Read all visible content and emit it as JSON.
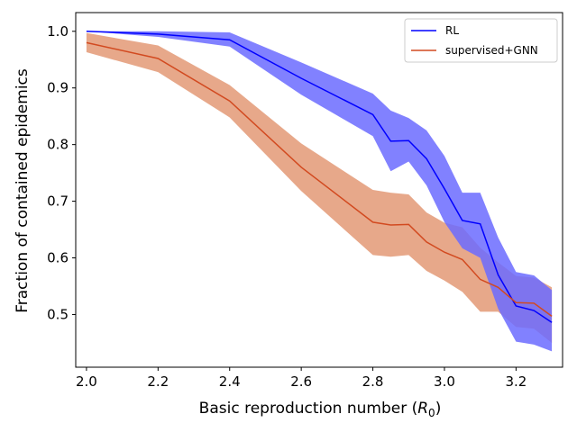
{
  "chart_data": {
    "type": "line",
    "title": "",
    "xlabel_main": "Basic reproduction number (",
    "xlabel_sym": "R",
    "xlabel_sub": "0",
    "xlabel_close": ")",
    "ylabel": "Fraction of contained epidemics",
    "xlim": [
      1.97,
      3.33
    ],
    "ylim": [
      0.407,
      1.033
    ],
    "xticks": [
      2.0,
      2.2,
      2.4,
      2.6,
      2.8,
      3.0,
      3.2
    ],
    "xtick_labels": [
      "2.0",
      "2.2",
      "2.4",
      "2.6",
      "2.8",
      "3.0",
      "3.2"
    ],
    "yticks": [
      0.5,
      0.6,
      0.7,
      0.8,
      0.9,
      1.0
    ],
    "ytick_labels": [
      "0.5",
      "0.6",
      "0.7",
      "0.8",
      "0.9",
      "1.0"
    ],
    "legend_position": "top-right",
    "series": [
      {
        "name": "RL",
        "color": "#0000ff",
        "band_color": "#6b6bff",
        "x": [
          2.0,
          2.2,
          2.4,
          2.6,
          2.8,
          2.85,
          2.9,
          2.95,
          3.0,
          3.05,
          3.1,
          3.15,
          3.2,
          3.25,
          3.3
        ],
        "mean": [
          1.0,
          0.995,
          0.985,
          0.917,
          0.853,
          0.806,
          0.807,
          0.775,
          0.722,
          0.666,
          0.66,
          0.57,
          0.515,
          0.507,
          0.486
        ],
        "lower": [
          1.0,
          0.99,
          0.973,
          0.888,
          0.815,
          0.753,
          0.77,
          0.728,
          0.663,
          0.617,
          0.6,
          0.51,
          0.452,
          0.447,
          0.435
        ],
        "upper": [
          1.0,
          1.0,
          0.998,
          0.945,
          0.89,
          0.86,
          0.847,
          0.825,
          0.78,
          0.715,
          0.715,
          0.636,
          0.575,
          0.569,
          0.543
        ]
      },
      {
        "name": "supervised+GNN",
        "color": "#d24a20",
        "band_color": "#e6a384",
        "x": [
          2.0,
          2.2,
          2.4,
          2.6,
          2.8,
          2.85,
          2.9,
          2.95,
          3.0,
          3.05,
          3.1,
          3.15,
          3.2,
          3.25,
          3.3
        ],
        "mean": [
          0.98,
          0.952,
          0.877,
          0.76,
          0.663,
          0.658,
          0.659,
          0.628,
          0.61,
          0.597,
          0.562,
          0.548,
          0.521,
          0.52,
          0.497
        ],
        "lower": [
          0.963,
          0.928,
          0.848,
          0.718,
          0.605,
          0.602,
          0.605,
          0.577,
          0.56,
          0.54,
          0.505,
          0.505,
          0.478,
          0.475,
          0.45
        ],
        "upper": [
          0.997,
          0.975,
          0.905,
          0.802,
          0.72,
          0.715,
          0.712,
          0.68,
          0.662,
          0.654,
          0.618,
          0.592,
          0.568,
          0.565,
          0.548
        ]
      }
    ]
  }
}
